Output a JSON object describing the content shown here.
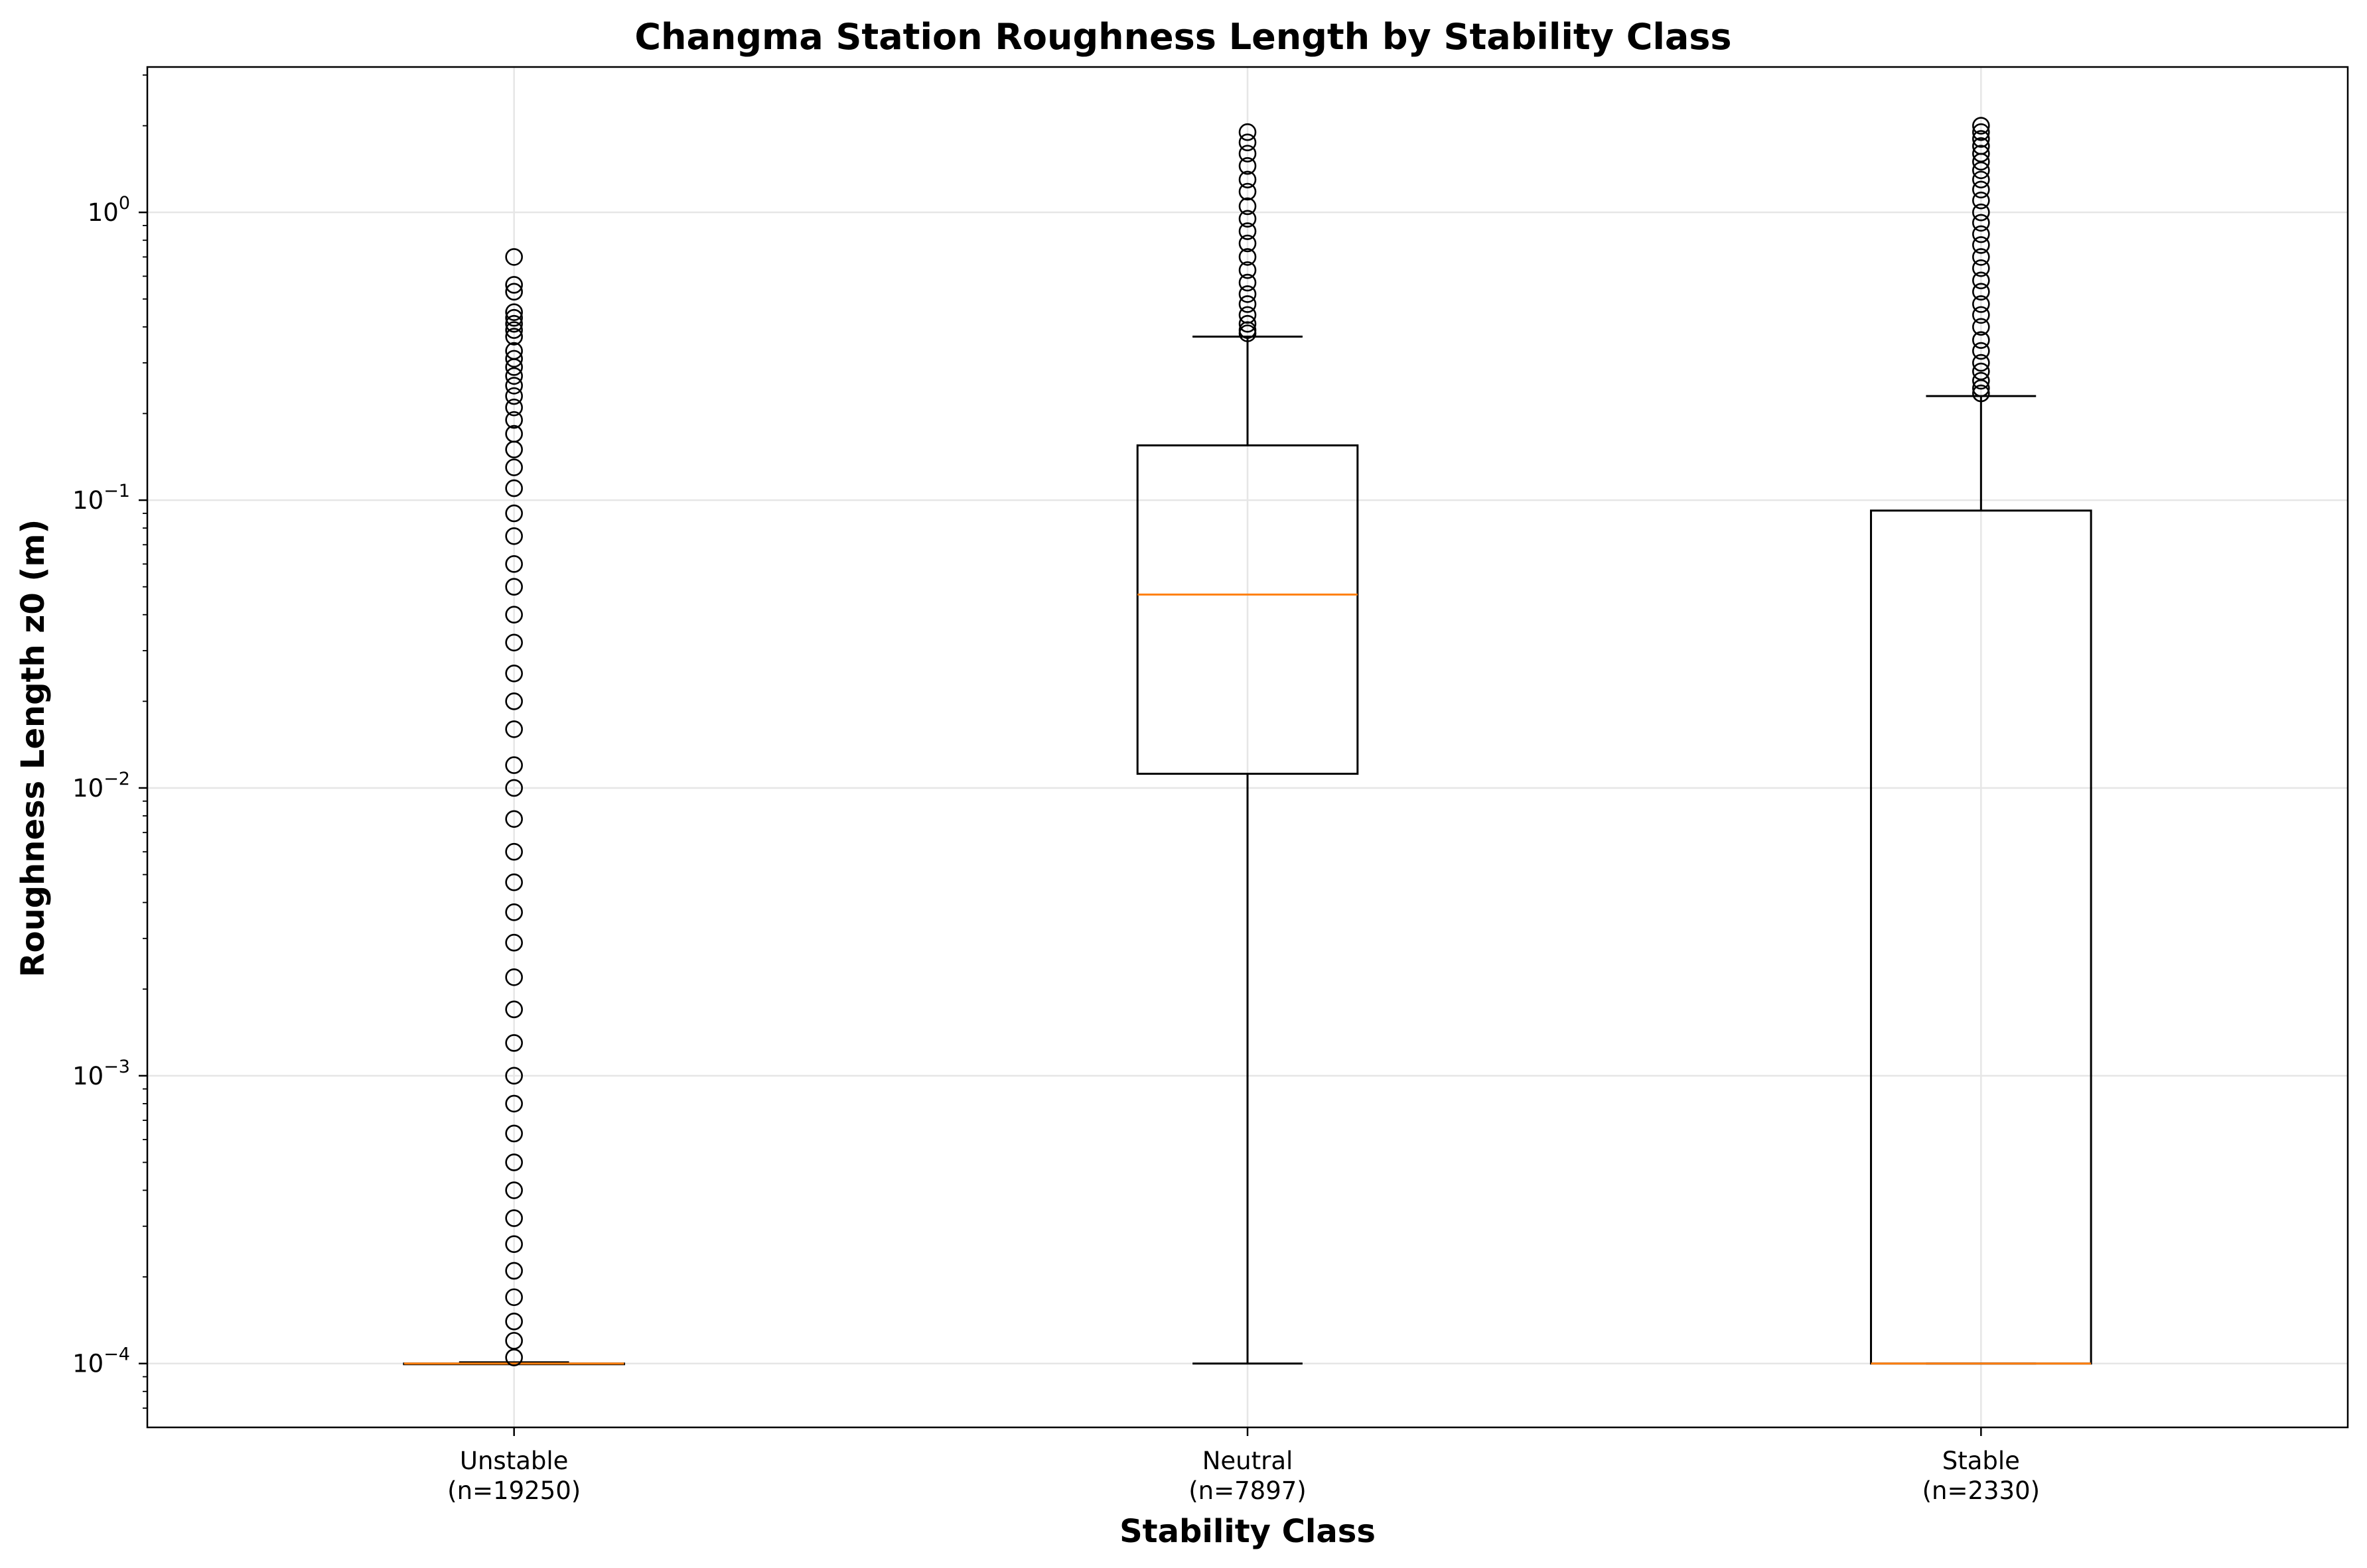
{
  "chart_data": {
    "type": "boxplot",
    "title": "Changma Station Roughness Length by Stability Class",
    "xlabel": "Stability Class",
    "ylabel": "Roughness Length z0 (m)",
    "yscale": "log",
    "ylim": [
      6e-05,
      3.2
    ],
    "grid": true,
    "y_ticks": [
      {
        "base": "10",
        "exp": "0",
        "value": 1
      },
      {
        "base": "10",
        "exp": "−1",
        "value": 0.1
      },
      {
        "base": "10",
        "exp": "−2",
        "value": 0.01
      },
      {
        "base": "10",
        "exp": "−3",
        "value": 0.001
      },
      {
        "base": "10",
        "exp": "−4",
        "value": 0.0001
      }
    ],
    "categories": [
      {
        "label": "Unstable",
        "n_label": "(n=19250)"
      },
      {
        "label": "Neutral",
        "n_label": "(n=7897)"
      },
      {
        "label": "Stable",
        "n_label": "(n=2330)"
      }
    ],
    "boxes": [
      {
        "category": "Unstable",
        "whislo": 0.0001,
        "q1": 0.0001,
        "median": 0.0001,
        "q3": 0.0001,
        "whishi": 0.000101,
        "fliers": [
          0.7,
          0.56,
          0.53,
          0.45,
          0.43,
          0.41,
          0.39,
          0.37,
          0.33,
          0.31,
          0.29,
          0.27,
          0.25,
          0.23,
          0.21,
          0.19,
          0.17,
          0.15,
          0.13,
          0.11,
          0.09,
          0.075,
          0.06,
          0.05,
          0.04,
          0.032,
          0.025,
          0.02,
          0.016,
          0.012,
          0.01,
          0.0078,
          0.006,
          0.0047,
          0.0037,
          0.0029,
          0.0022,
          0.0017,
          0.0013,
          0.001,
          0.0008,
          0.00063,
          0.0005,
          0.0004,
          0.00032,
          0.00026,
          0.00021,
          0.00017,
          0.00014,
          0.00012,
          0.000105
        ]
      },
      {
        "category": "Neutral",
        "whislo": 0.0001,
        "q1": 0.0112,
        "median": 0.047,
        "q3": 0.155,
        "whishi": 0.37,
        "fliers": [
          1.9,
          1.75,
          1.6,
          1.45,
          1.3,
          1.18,
          1.05,
          0.95,
          0.86,
          0.78,
          0.7,
          0.63,
          0.57,
          0.52,
          0.48,
          0.44,
          0.41,
          0.39,
          0.38
        ]
      },
      {
        "category": "Stable",
        "whislo": 0.0001,
        "q1": 0.0001,
        "median": 0.0001,
        "q3": 0.092,
        "whishi": 0.23,
        "fliers": [
          2.0,
          1.9,
          1.8,
          1.7,
          1.6,
          1.5,
          1.4,
          1.3,
          1.2,
          1.1,
          1.0,
          0.92,
          0.84,
          0.77,
          0.7,
          0.64,
          0.58,
          0.53,
          0.48,
          0.44,
          0.4,
          0.36,
          0.33,
          0.3,
          0.28,
          0.26,
          0.245,
          0.235
        ]
      }
    ],
    "colors": {
      "box": "#000000",
      "median": "#ff7f0e",
      "grid": "#e6e6e6",
      "flier_edge": "#000000"
    }
  }
}
